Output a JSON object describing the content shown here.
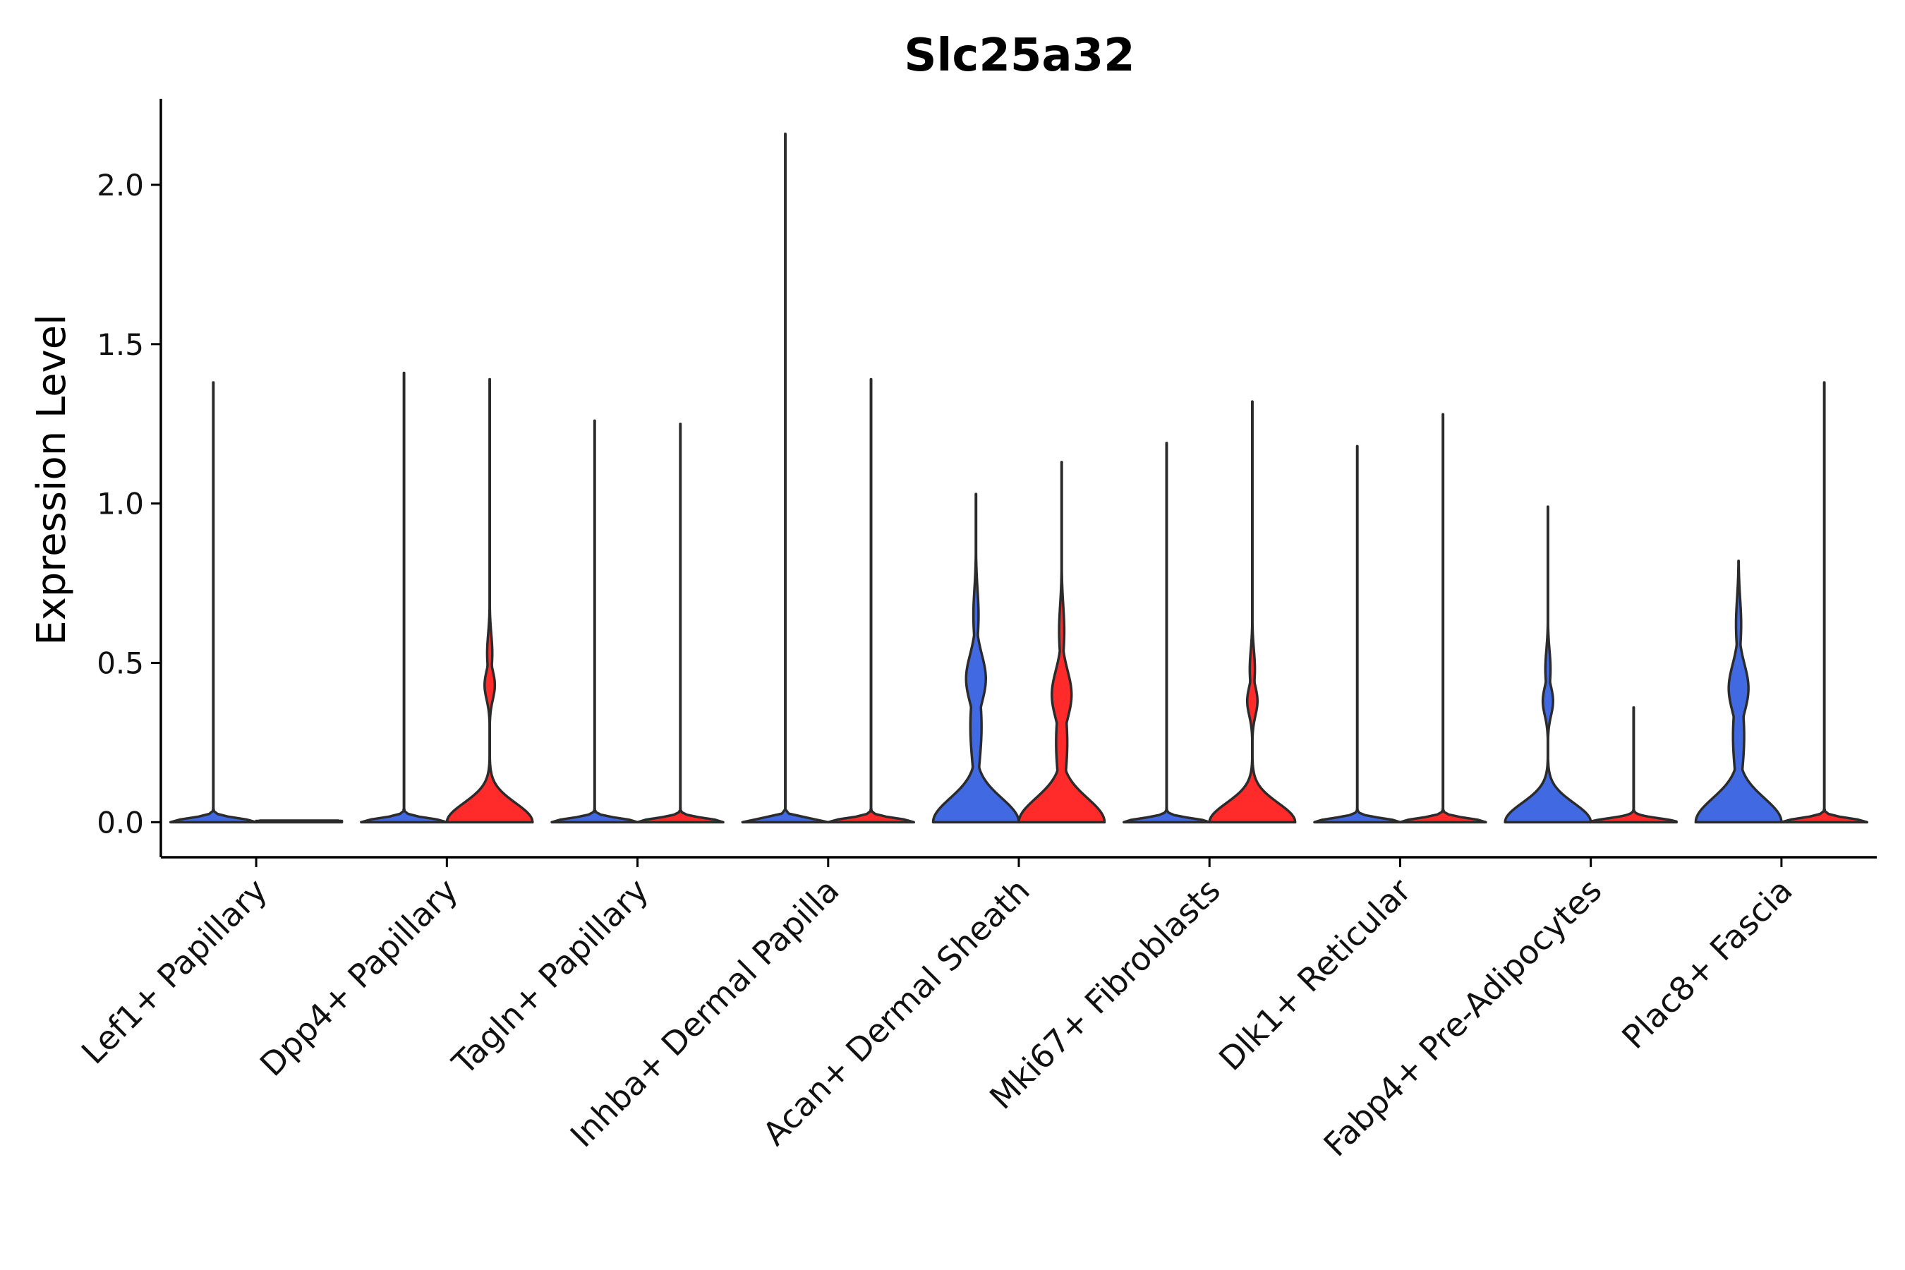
{
  "chart_data": {
    "type": "violin",
    "title": "Slc25a32",
    "xlabel": "",
    "ylabel": "Expression Level",
    "ylim": [
      -0.11,
      2.27
    ],
    "yticks": [
      0.0,
      0.5,
      1.0,
      1.5,
      2.0
    ],
    "ytick_labels": [
      "0.0",
      "0.5",
      "1.0",
      "1.5",
      "2.0"
    ],
    "categories": [
      "Lef1+ Papillary",
      "Dpp4+ Papillary",
      "Tagln+ Papillary",
      "Inhba+ Dermal Papilla",
      "Acan+ Dermal Sheath",
      "Mki67+ Fibroblasts",
      "Dlk1+ Reticular",
      "Fabp4+ Pre-Adipocytes",
      "Plac8+ Fascia"
    ],
    "groups": [
      {
        "name": "group-1",
        "color": "#4169e1"
      },
      {
        "name": "group-2",
        "color": "#ff2a2a"
      }
    ],
    "violins": [
      {
        "category": "Lef1+ Papillary",
        "group": "group-1",
        "max": 1.38,
        "shape": "flat"
      },
      {
        "category": "Lef1+ Papillary",
        "group": "group-2",
        "max": 0.0,
        "shape": "flat"
      },
      {
        "category": "Dpp4+ Papillary",
        "group": "group-1",
        "max": 1.41,
        "shape": "flat"
      },
      {
        "category": "Dpp4+ Papillary",
        "group": "group-2",
        "max": 1.39,
        "shape": "bimodal",
        "mode": 0.43
      },
      {
        "category": "Tagln+ Papillary",
        "group": "group-1",
        "max": 1.26,
        "shape": "flat"
      },
      {
        "category": "Tagln+ Papillary",
        "group": "group-2",
        "max": 1.25,
        "shape": "flat"
      },
      {
        "category": "Inhba+ Dermal Papilla",
        "group": "group-1",
        "max": 2.16,
        "shape": "flat"
      },
      {
        "category": "Inhba+ Dermal Papilla",
        "group": "group-2",
        "max": 1.39,
        "shape": "flat"
      },
      {
        "category": "Acan+ Dermal Sheath",
        "group": "group-1",
        "max": 1.03,
        "shape": "wide",
        "mode": 0.45
      },
      {
        "category": "Acan+ Dermal Sheath",
        "group": "group-2",
        "max": 1.13,
        "shape": "wide",
        "mode": 0.4
      },
      {
        "category": "Mki67+ Fibroblasts",
        "group": "group-1",
        "max": 1.19,
        "shape": "flat"
      },
      {
        "category": "Mki67+ Fibroblasts",
        "group": "group-2",
        "max": 1.32,
        "shape": "bimodal",
        "mode": 0.38
      },
      {
        "category": "Dlk1+ Reticular",
        "group": "group-1",
        "max": 1.18,
        "shape": "flat"
      },
      {
        "category": "Dlk1+ Reticular",
        "group": "group-2",
        "max": 1.28,
        "shape": "flat"
      },
      {
        "category": "Fabp4+ Pre-Adipocytes",
        "group": "group-1",
        "max": 0.99,
        "shape": "bimodal",
        "mode": 0.38
      },
      {
        "category": "Fabp4+ Pre-Adipocytes",
        "group": "group-2",
        "max": 0.36,
        "shape": "flat"
      },
      {
        "category": "Plac8+ Fascia",
        "group": "group-1",
        "max": 0.82,
        "shape": "wide",
        "mode": 0.42
      },
      {
        "category": "Plac8+ Fascia",
        "group": "group-2",
        "max": 1.38,
        "shape": "flat"
      }
    ]
  }
}
